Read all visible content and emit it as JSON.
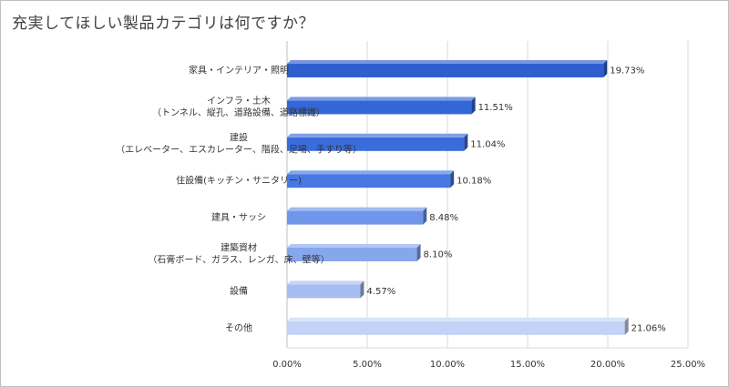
{
  "chart_data": {
    "type": "bar",
    "orientation": "horizontal",
    "style": "3d-bar",
    "title": "充実してほしい製品カテゴリは何ですか？",
    "categories": [
      [
        "家具・インテリア・照明"
      ],
      [
        "インフラ・土木",
        "（トンネル、縦孔、道路設備、道路標識）"
      ],
      [
        "建設",
        "（エレベーター、エスカレーター、階段、足場、手すり等）"
      ],
      [
        "住設備(キッチン・サニタリー)"
      ],
      [
        "建具・サッシ"
      ],
      [
        "建築資材",
        "（石膏ボード、ガラス、レンガ、床、壁等）"
      ],
      [
        "設備"
      ],
      [
        "その他"
      ]
    ],
    "values": [
      19.73,
      11.51,
      11.04,
      10.18,
      8.48,
      8.1,
      4.57,
      21.06
    ],
    "value_labels": [
      "19.73%",
      "11.51%",
      "11.04%",
      "10.18%",
      "8.48%",
      "8.10%",
      "4.57%",
      "21.06%"
    ],
    "xlim": [
      0,
      25
    ],
    "xticks": [
      "0.00%",
      "5.00%",
      "10.00%",
      "15.00%",
      "20.00%",
      "25.00%"
    ],
    "xgrid": true,
    "bar_colors": [
      "#2f5fcf",
      "#3366d6",
      "#3a6ddc",
      "#4677e2",
      "#6f96ea",
      "#87a7ed",
      "#a6bdf1",
      "#c3d2f6"
    ]
  }
}
